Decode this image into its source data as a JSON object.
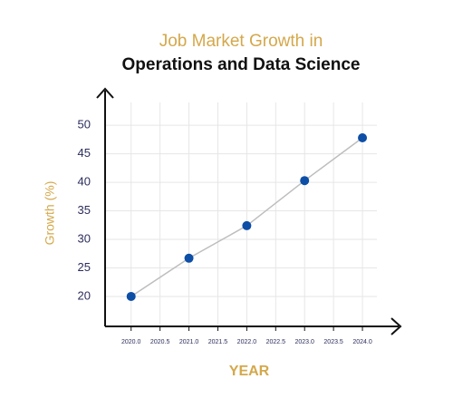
{
  "chart_data": {
    "type": "line",
    "title": "Job Market Growth in",
    "subtitle": "Operations and Data Science",
    "x_label": "YEAR",
    "y_label": "Growth (%)",
    "x": [
      2020,
      2021,
      2022,
      2023,
      2024
    ],
    "values": [
      20,
      26.7,
      32.4,
      40.3,
      47.8
    ],
    "line_color": "#bdbdbd",
    "marker_color": "#0d4ea6",
    "xlim": [
      2019.55,
      2024.25
    ],
    "xticks": [
      {
        "value": 2020,
        "label": "2020.0"
      },
      {
        "value": 2020.5,
        "label": "2020.5"
      },
      {
        "value": 2021,
        "label": "2021.0"
      },
      {
        "value": 2021.5,
        "label": "2021.5"
      },
      {
        "value": 2022,
        "label": "2022.0"
      },
      {
        "value": 2022.5,
        "label": "2022.5"
      },
      {
        "value": 2023,
        "label": "2023.0"
      },
      {
        "value": 2023.5,
        "label": "2023.5"
      },
      {
        "value": 2024,
        "label": "2024.0"
      }
    ],
    "ylim": [
      15,
      54
    ],
    "yticks": [
      20,
      25,
      30,
      35,
      40,
      45,
      50
    ],
    "grid": true
  }
}
